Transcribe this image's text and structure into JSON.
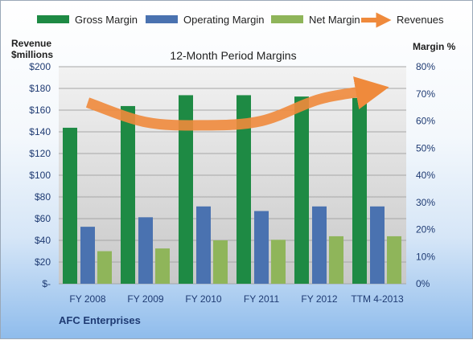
{
  "chart_data": {
    "type": "bar",
    "title": "12-Month Period Margins",
    "categories": [
      "FY 2008",
      "FY 2009",
      "FY 2010",
      "FY 2011",
      "FY 2012",
      "TTM 4-2013"
    ],
    "series": [
      {
        "name": "Gross Margin",
        "axis": "right",
        "color": "#1e8a44",
        "values": [
          57.5,
          65.5,
          69.5,
          69.5,
          69.0,
          68.5
        ]
      },
      {
        "name": "Operating Margin",
        "axis": "right",
        "color": "#4a72b0",
        "values": [
          21.0,
          24.5,
          28.5,
          26.8,
          28.5,
          28.5
        ]
      },
      {
        "name": "Net Margin",
        "axis": "right",
        "color": "#8fb55a",
        "values": [
          12.0,
          13.0,
          16.0,
          16.2,
          17.5,
          17.5
        ]
      },
      {
        "name": "Revenues",
        "axis": "left",
        "type": "line",
        "color": "#ef8a3c",
        "values": [
          167,
          149,
          146,
          150,
          170,
          178
        ]
      }
    ],
    "y_left": {
      "label_line1": "Revenue",
      "label_line2": "$millions",
      "ylim": [
        0,
        200
      ],
      "ticks": [
        "$-",
        "$20",
        "$40",
        "$60",
        "$80",
        "$100",
        "$120",
        "$140",
        "$160",
        "$180",
        "$200"
      ]
    },
    "y_right": {
      "label": "Margin %",
      "ylim": [
        0,
        80
      ],
      "ticks": [
        "0%",
        "10%",
        "20%",
        "30%",
        "40%",
        "50%",
        "60%",
        "70%",
        "80%"
      ]
    },
    "grid": true,
    "legend_position": "top"
  },
  "footer": "AFC Enterprises"
}
